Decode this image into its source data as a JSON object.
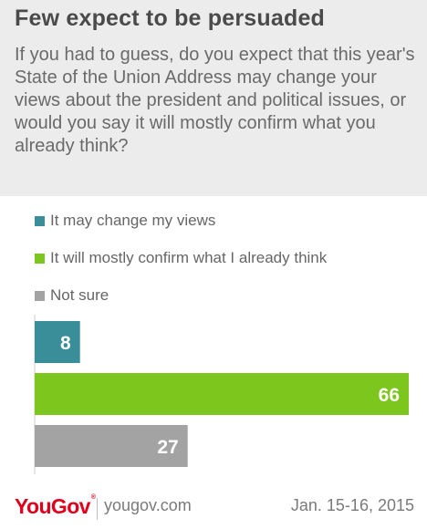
{
  "header": {
    "title": "Few expect to be persuaded",
    "subtitle": "If you had to guess, do you expect that this year's State of the Union Address may change your views about the president and political issues, or would you say it will mostly confirm what you already think?"
  },
  "chart_data": {
    "type": "bar",
    "orientation": "horizontal",
    "categories": [
      "It may change my views",
      "It will mostly confirm what I already think",
      "Not sure"
    ],
    "values": [
      8,
      66,
      27
    ],
    "colors": [
      "#3a8e9a",
      "#7cc61e",
      "#a3a3a3"
    ],
    "xlim": [
      0,
      66
    ],
    "grid": false,
    "legend_position": "top-left",
    "data_labels": true
  },
  "footer": {
    "brand": "YouGov",
    "brand_mark": "®",
    "site": "yougov.com",
    "date": "Jan. 15-16, 2015"
  },
  "colors": {
    "brand": "#e0001b",
    "header_bg": "#ececec"
  }
}
